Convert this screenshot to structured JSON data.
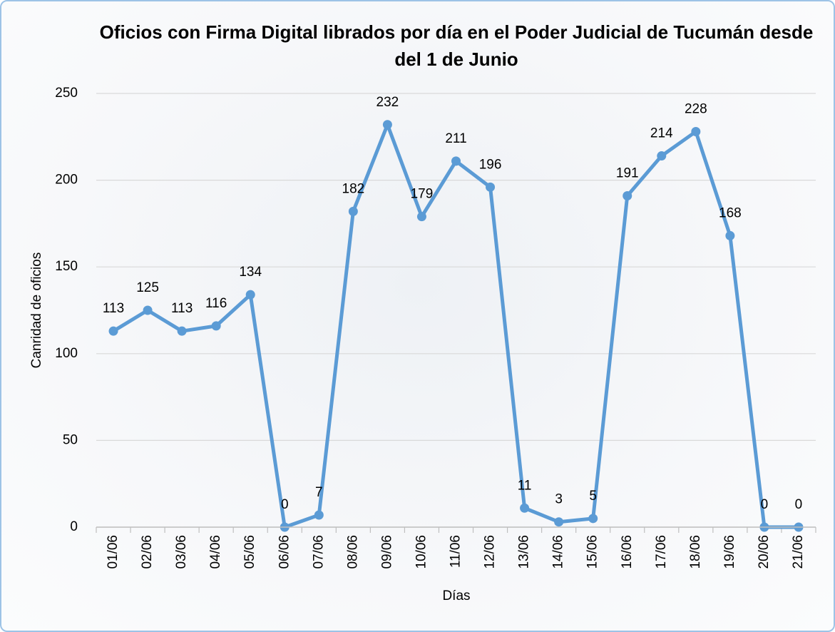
{
  "chart_data": {
    "type": "line",
    "title": "Oficios con Firma Digital librados por día en el Poder Judicial de Tucumán desde del 1 de Junio",
    "x_label": "Días",
    "y_label": "Canridad de oficios",
    "categories": [
      "01/06",
      "02/06",
      "03/06",
      "04/06",
      "05/06",
      "06/06",
      "07/06",
      "08/06",
      "09/06",
      "10/06",
      "11/06",
      "12/06",
      "13/06",
      "14/06",
      "15/06",
      "16/06",
      "17/06",
      "18/06",
      "19/06",
      "20/06",
      "21/06"
    ],
    "series": [
      {
        "name": "Oficios",
        "color": "#5b9bd5",
        "values": [
          113,
          125,
          113,
          116,
          134,
          0,
          7,
          182,
          232,
          179,
          211,
          196,
          11,
          3,
          5,
          191,
          214,
          228,
          168,
          0,
          0
        ]
      }
    ],
    "ylim": [
      0,
      250
    ],
    "yticks": [
      0,
      50,
      100,
      150,
      200,
      250
    ],
    "grid": true
  }
}
